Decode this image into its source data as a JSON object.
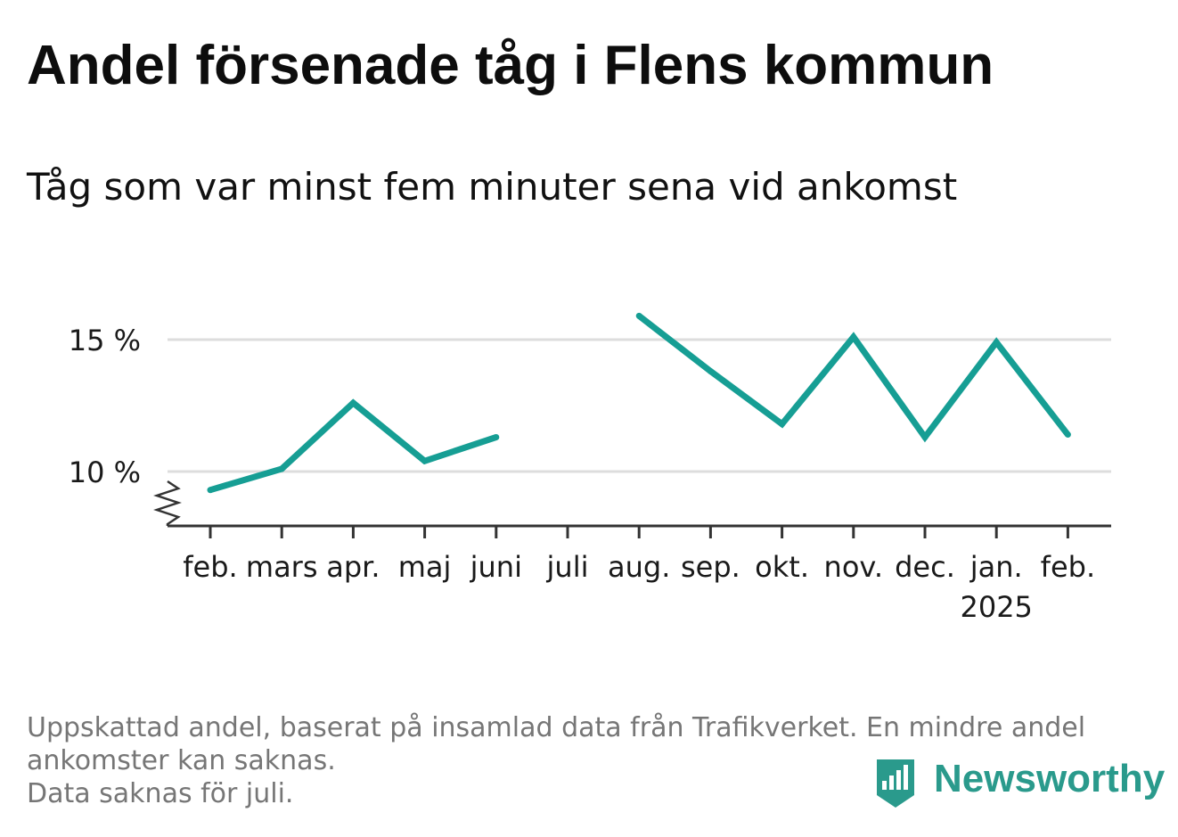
{
  "title": "Andel försenade tåg i Flens kommun",
  "subtitle": "Tåg som var minst fem minuter sena vid ankomst",
  "footnote": {
    "line1": "Uppskattad andel, baserat på insamlad data från Trafikverket. En mindre andel",
    "line2": "ankomster kan saknas.",
    "line3": "Data saknas för juli."
  },
  "brand": {
    "name": "Newsworthy",
    "color": "#2a9a8c"
  },
  "colors": {
    "line": "#169e94",
    "grid": "#dddddd",
    "axis": "#333333"
  },
  "chart_data": {
    "type": "line",
    "title": "Andel försenade tåg i Flens kommun",
    "subtitle": "Tåg som var minst fem minuter sena vid ankomst",
    "categories": [
      "feb.",
      "mars",
      "apr.",
      "maj",
      "juni",
      "juli",
      "aug.",
      "sep.",
      "okt.",
      "nov.",
      "dec.",
      "jan.",
      "feb."
    ],
    "year_labels": [
      "",
      "",
      "",
      "",
      "",
      "",
      "",
      "",
      "",
      "",
      "",
      "2025",
      ""
    ],
    "series": [
      {
        "values": [
          9.3,
          10.1,
          12.6,
          10.4,
          11.3,
          null,
          15.9,
          13.8,
          11.8,
          15.1,
          11.3,
          14.9,
          11.4
        ]
      }
    ],
    "ylim": [
      8,
      17
    ],
    "yticks": [
      {
        "value": 10,
        "label": "10 %"
      },
      {
        "value": 15,
        "label": "15 %"
      }
    ],
    "y_axis_break": true,
    "grid": true,
    "xlabel": "",
    "ylabel": ""
  }
}
